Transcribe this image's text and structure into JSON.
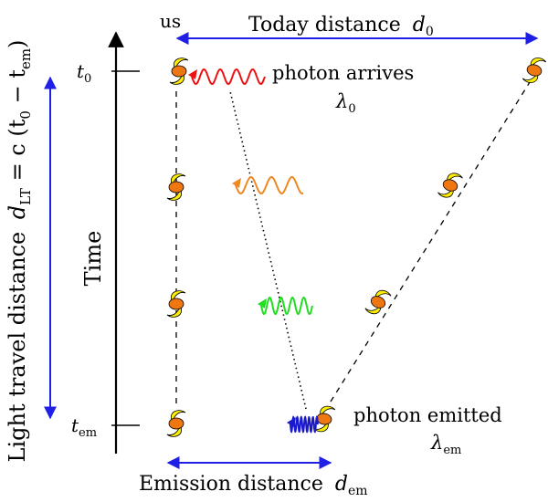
{
  "labels": {
    "us": "us",
    "today_distance": "Today distance",
    "today_symbol": "d",
    "today_sub": "0",
    "t0": "t",
    "t0_sub": "0",
    "tem": "t",
    "tem_sub": "em",
    "time": "Time",
    "photon_arrives": "photon arrives",
    "lambda0": "λ",
    "lambda0_sub": "0",
    "photon_emitted": "photon emitted",
    "lambda_em": "λ",
    "lambda_em_sub": "em",
    "emission_distance": "Emission distance",
    "emission_symbol": "d",
    "emission_sub": "em",
    "light_travel_text": "Light travel distance",
    "light_travel_symbol": "d",
    "light_travel_sub": "LT",
    "light_travel_eq": " = c (t",
    "light_travel_sub2": "0",
    "light_travel_minus": " − t",
    "light_travel_sub3": "em",
    "light_travel_close": ")"
  },
  "colors": {
    "arrow_blue": "#1f1fe6",
    "wave_t0": "#ee1111",
    "wave_t1": "#ee8822",
    "wave_t2": "#22dd22",
    "wave_tem": "#1a1acc",
    "galaxy_body": "#ee7711",
    "galaxy_arm": "#ffee00"
  },
  "galaxies": [
    {
      "name": "us-galaxy-t0"
    },
    {
      "name": "us-galaxy-t1"
    },
    {
      "name": "us-galaxy-t2"
    },
    {
      "name": "us-galaxy-tem"
    },
    {
      "name": "source-galaxy-t0"
    },
    {
      "name": "source-galaxy-t1"
    },
    {
      "name": "source-galaxy-t2"
    },
    {
      "name": "source-galaxy-tem"
    }
  ]
}
